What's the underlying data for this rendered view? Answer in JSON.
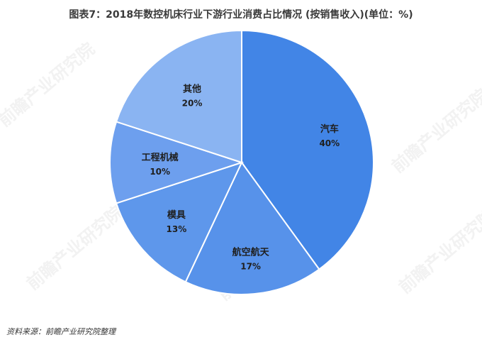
{
  "header": {
    "title": "图表7：2018年数控机床行业下游行业消费占比情况 (按销售收入)(单位：%)"
  },
  "footer": {
    "source": "资料来源：前瞻产业研究院整理"
  },
  "watermark": {
    "text": "前瞻产业研究院"
  },
  "colors": {
    "slice_dark": "#4285e6",
    "slice_mid": "#6199ec",
    "slice_light": "#8ab4f2",
    "stroke": "#ffffff"
  },
  "chart_data": {
    "type": "pie",
    "title": "图表7：2018年数控机床行业下游行业消费占比情况 (按销售收入)(单位：%)",
    "start_angle": "12 o'clock",
    "direction": "clockwise",
    "legend": "none",
    "slices": [
      {
        "label": "汽车",
        "value": 40,
        "pct_label": "40%",
        "color": "#4285e6"
      },
      {
        "label": "航空航天",
        "value": 17,
        "pct_label": "17%",
        "color": "#5792ea"
      },
      {
        "label": "模具",
        "value": 13,
        "pct_label": "13%",
        "color": "#5e97eb"
      },
      {
        "label": "工程机械",
        "value": 10,
        "pct_label": "10%",
        "color": "#6d9fee"
      },
      {
        "label": "其他",
        "value": 20,
        "pct_label": "20%",
        "color": "#8ab4f2"
      }
    ]
  }
}
